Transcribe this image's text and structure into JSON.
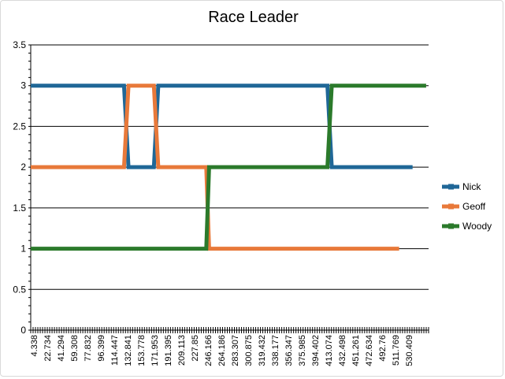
{
  "chart_data": {
    "type": "line",
    "title": "Race Leader",
    "xlabel": "",
    "ylabel": "",
    "ylim": [
      0,
      3.5
    ],
    "yticks": [
      "0",
      "0.5",
      "1",
      "1.5",
      "2",
      "2.5",
      "3",
      "3.5"
    ],
    "x_tick_labels": [
      "4.338",
      "22.734",
      "41.294",
      "59.308",
      "77.832",
      "96.399",
      "114.447",
      "132.841",
      "153.778",
      "171.953",
      "191.395",
      "209.113",
      "227.85",
      "246.166",
      "264.186",
      "283.307",
      "300.875",
      "319.432",
      "338.177",
      "356.347",
      "375.985",
      "394.402",
      "413.074",
      "432.498",
      "451.261",
      "472.634",
      "492.76",
      "511.769",
      "530.409"
    ],
    "grid": "horizontal",
    "legend_position": "right",
    "series": [
      {
        "name": "Nick",
        "color": "#1f6797",
        "points": [
          [
            4.338,
            3
          ],
          [
            132.841,
            3
          ],
          [
            139,
            2
          ],
          [
            174,
            2
          ],
          [
            180,
            3
          ],
          [
            413.074,
            3
          ],
          [
            419,
            2
          ],
          [
            530.409,
            2
          ]
        ]
      },
      {
        "name": "Geoff",
        "color": "#e8793a",
        "points": [
          [
            4.338,
            2
          ],
          [
            132.841,
            2
          ],
          [
            139,
            3
          ],
          [
            174,
            3
          ],
          [
            180,
            2
          ],
          [
            246.166,
            2
          ],
          [
            250,
            1
          ],
          [
            511.769,
            1
          ]
        ]
      },
      {
        "name": "Woody",
        "color": "#2b7a2b",
        "points": [
          [
            4.338,
            1
          ],
          [
            246.166,
            1
          ],
          [
            250,
            2
          ],
          [
            413.074,
            2
          ],
          [
            419,
            3
          ],
          [
            549,
            3
          ]
        ]
      }
    ]
  }
}
